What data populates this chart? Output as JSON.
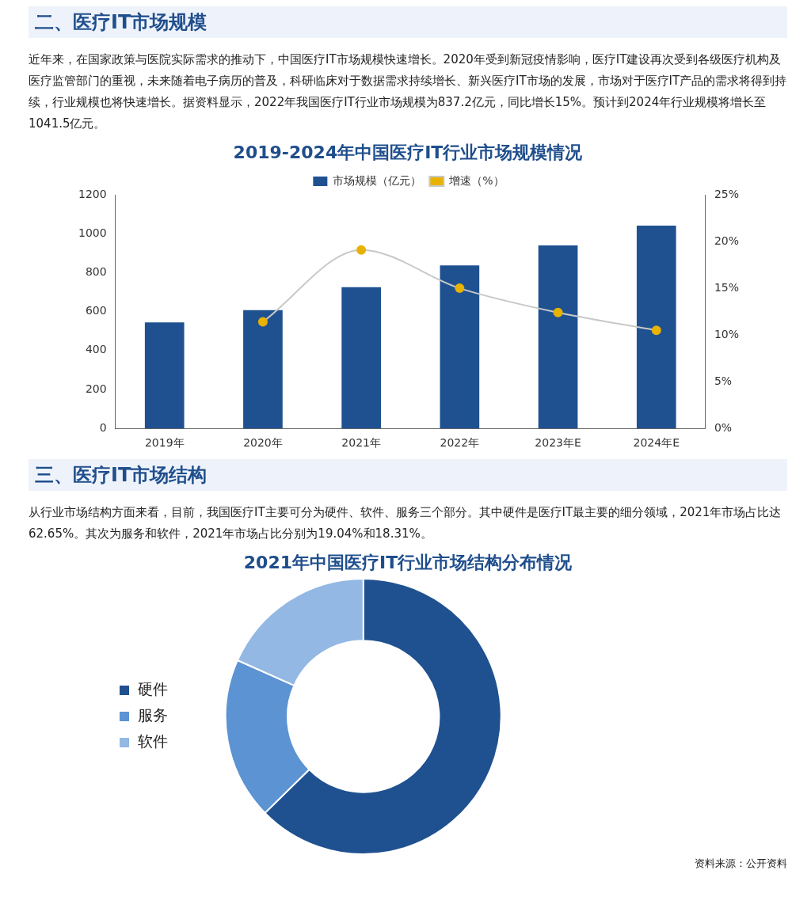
{
  "chart_data": [
    {
      "type": "bar",
      "title": "2019-2024年中国医疗IT行业市场规模情况",
      "annotations": [
        "二、医疗IT市场规模",
        "近年来，在国家政策与医院实际需求的推动下，中国医疗IT市场规模快速增长。2020年受到新冠疫情影响，医疗IT建设再次受到各级医疗机构及医疗监管部门的重视，未来随着电子病历的普及，科研临床对于数据需求持续增长、新兴医疗IT市场的发展，市场对于医疗IT产品的需求将得到持续，行业规模也将快速增长。据资料显示，2022年我国医疗IT行业市场规模为837.2亿元，同比增长15%。预计到2024年行业规模将增长至1041.5亿元。"
      ],
      "categories": [
        "2019年",
        "2020年",
        "2021年",
        "2022年",
        "2023年E",
        "2024年E"
      ],
      "series": [
        {
          "name": "市场规模（亿元）",
          "type": "bar",
          "color": "#1f5191",
          "values": [
            545,
            608,
            725,
            837.2,
            940,
            1041.5
          ]
        },
        {
          "name": "增速（%）",
          "type": "line",
          "axis": "y2",
          "color": "#e8b200",
          "marker": "circle",
          "values": [
            null,
            11.4,
            19.1,
            15,
            12.4,
            10.5
          ]
        }
      ],
      "ylim": [
        0,
        1200
      ],
      "yticks": [
        0,
        200,
        400,
        600,
        800,
        1000,
        1200
      ],
      "y2lim": [
        0,
        25
      ],
      "y2ticks": [
        {
          "value": 0,
          "label": "0%"
        },
        {
          "value": 5,
          "label": "5%"
        },
        {
          "value": 10,
          "label": "10%"
        },
        {
          "value": 15,
          "label": "15%"
        },
        {
          "value": 20,
          "label": "20%"
        },
        {
          "value": 25,
          "label": "25%"
        }
      ],
      "legend": "top",
      "grid": false
    },
    {
      "type": "donut",
      "title": "2021年中国医疗IT行业市场结构分布情况",
      "annotations": [
        "三、医疗IT市场结构",
        "从行业市场结构方面来看，目前，我国医疗IT主要可分为硬件、软件、服务三个部分。其中硬件是医疗IT最主要的细分领域，2021年市场占比达62.65%。其次为服务和软件，2021年市场占比分别为19.04%和18.31%。",
        "资料来源：公开资料"
      ],
      "categories": [
        "硬件",
        "服务",
        "软件"
      ],
      "values": [
        62.65,
        19.04,
        18.31
      ],
      "colors": [
        "#1f5191",
        "#5b93d3",
        "#93b8e4"
      ],
      "legend": "left"
    }
  ]
}
